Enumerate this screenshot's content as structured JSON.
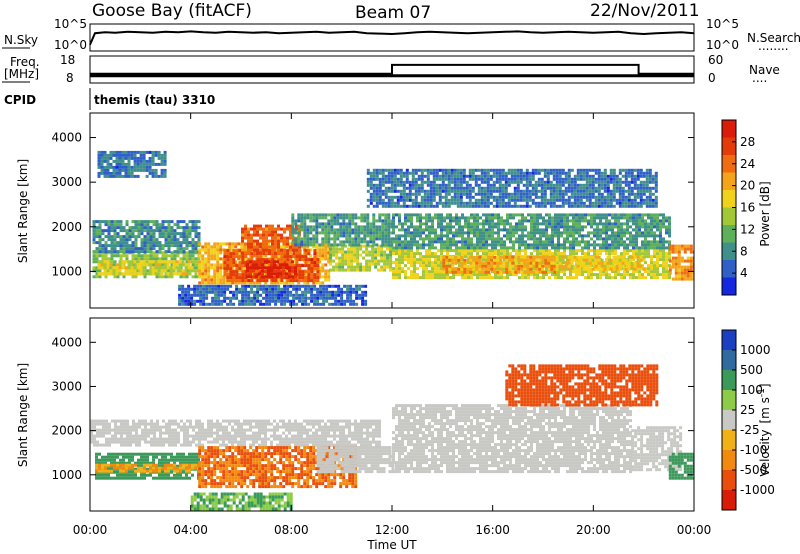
{
  "header": {
    "station": "Goose Bay (fitACF)",
    "beam": "Beam 07",
    "date": "22/Nov/2011"
  },
  "nsky_panel": {
    "left_label": "N.Sky",
    "right_label": "N.Search",
    "right_dots": "........",
    "left_ticks": [
      "10^5",
      "10^0"
    ],
    "right_ticks": [
      "10^5",
      "10^0"
    ]
  },
  "freq_panel": {
    "left_label_1": "Freq.",
    "left_label_2": "[MHz]",
    "right_label": "Nave",
    "right_dots": "....",
    "left_ticks": [
      "18",
      "8"
    ],
    "right_ticks": [
      "60",
      "0"
    ]
  },
  "cpid": {
    "label": "CPID",
    "text": "themis (tau) 3310"
  },
  "chart_data": [
    {
      "type": "line",
      "title": "N.Sky / N.Search",
      "x_unit": "hours UT",
      "x": [
        0.0,
        0.2,
        0.6,
        1.0,
        1.5,
        2.0,
        2.5,
        3.0,
        3.5,
        4.0,
        4.5,
        5.0,
        5.5,
        6.0,
        6.5,
        7.0,
        7.5,
        8.0,
        8.5,
        9.0,
        9.5,
        10.0,
        10.5,
        11.0,
        11.5,
        12.0,
        12.5,
        13.0,
        13.5,
        14.0,
        14.5,
        15.0,
        15.5,
        16.0,
        16.5,
        17.0,
        17.5,
        18.0,
        18.5,
        19.0,
        19.5,
        20.0,
        20.5,
        21.0,
        21.5,
        22.0,
        22.5,
        23.0,
        23.5,
        24.0
      ],
      "series": [
        {
          "name": "N.Sky",
          "log10_values": [
            1.0,
            3.6,
            3.8,
            3.7,
            3.9,
            3.8,
            3.7,
            3.9,
            3.8,
            4.0,
            3.8,
            3.7,
            3.9,
            3.8,
            3.7,
            3.8,
            3.6,
            3.7,
            3.8,
            3.9,
            3.7,
            3.8,
            3.9,
            3.6,
            3.5,
            3.4,
            3.6,
            3.8,
            3.9,
            3.8,
            3.7,
            3.6,
            3.7,
            3.8,
            3.9,
            4.0,
            3.8,
            3.7,
            3.8,
            3.9,
            3.8,
            3.7,
            3.8,
            3.9,
            3.6,
            3.4,
            3.6,
            3.7,
            3.8,
            3.6
          ]
        }
      ],
      "y_ticks": [
        "10^0",
        "10^5"
      ]
    },
    {
      "type": "line",
      "title": "Freq. / Nave",
      "x_unit": "hours UT",
      "x": [
        0.0,
        12.0,
        12.0,
        21.8,
        21.8,
        24.0
      ],
      "series": [
        {
          "name": "Freq.",
          "values": [
            10.4,
            10.4,
            10.4,
            10.4,
            10.4,
            10.4
          ]
        },
        {
          "name": "Nave",
          "values": [
            20,
            20,
            44,
            44,
            20,
            20
          ]
        }
      ],
      "ylim_left": [
        8,
        18
      ],
      "ylim_right": [
        0,
        60
      ]
    },
    {
      "type": "heatmap",
      "title": "Power",
      "x_ticks": [
        "00:00",
        "04:00",
        "08:00",
        "12:00",
        "16:00",
        "20:00",
        "00:00"
      ],
      "xlim_hours": [
        0,
        24
      ],
      "ylabel": "Slant Range [km]",
      "y_ticks": [
        1000,
        2000,
        3000,
        4000
      ],
      "ylim": [
        180,
        4550
      ],
      "colorbar": {
        "label": "Power [dB]",
        "ticks": [
          4,
          8,
          12,
          16,
          20,
          24,
          28
        ],
        "range": [
          0,
          32
        ],
        "colors": [
          "#1528e0",
          "#2f60c8",
          "#3f8f8a",
          "#5fb05a",
          "#a2c838",
          "#f0d21a",
          "#f4a418",
          "#ef6c10",
          "#e53a0a",
          "#da1c08"
        ]
      },
      "regions": [
        {
          "t0": 0.1,
          "t1": 4.3,
          "r0": 860,
          "r1": 1450,
          "v": 13
        },
        {
          "t0": 0.1,
          "t1": 4.3,
          "r0": 1450,
          "r1": 2150,
          "v": 8
        },
        {
          "t0": 0.3,
          "t1": 4.0,
          "r0": 980,
          "r1": 1250,
          "v": 17
        },
        {
          "t0": 4.3,
          "t1": 9.5,
          "r0": 760,
          "r1": 1650,
          "v": 20
        },
        {
          "t0": 5.3,
          "t1": 9.0,
          "r0": 820,
          "r1": 1500,
          "v": 26
        },
        {
          "t0": 6.0,
          "t1": 8.3,
          "r0": 1400,
          "r1": 2050,
          "v": 25
        },
        {
          "t0": 6.2,
          "t1": 8.2,
          "r0": 880,
          "r1": 1250,
          "v": 30
        },
        {
          "t0": 9.5,
          "t1": 12.0,
          "r0": 1050,
          "r1": 1600,
          "v": 15
        },
        {
          "t0": 8.0,
          "t1": 12.0,
          "r0": 1600,
          "r1": 2300,
          "v": 9
        },
        {
          "t0": 12.0,
          "t1": 23.0,
          "r0": 880,
          "r1": 1500,
          "v": 16
        },
        {
          "t0": 12.0,
          "t1": 23.0,
          "r0": 1500,
          "r1": 2300,
          "v": 9
        },
        {
          "t0": 14.0,
          "t1": 18.5,
          "r0": 1000,
          "r1": 1350,
          "v": 21
        },
        {
          "t0": 18.5,
          "t1": 22.0,
          "r0": 1050,
          "r1": 1350,
          "v": 18
        },
        {
          "t0": 23.0,
          "t1": 24.0,
          "r0": 800,
          "r1": 1600,
          "v": 22
        },
        {
          "t0": 0.3,
          "t1": 3.0,
          "r0": 3100,
          "r1": 3700,
          "v": 6
        },
        {
          "t0": 11.0,
          "t1": 22.5,
          "r0": 2450,
          "r1": 3300,
          "v": 6
        },
        {
          "t0": 3.5,
          "t1": 11.0,
          "r0": 250,
          "r1": 700,
          "v": 5
        }
      ]
    },
    {
      "type": "heatmap",
      "title": "Velocity",
      "x_ticks": [
        "00:00",
        "04:00",
        "08:00",
        "12:00",
        "16:00",
        "20:00",
        "00:00"
      ],
      "xlim_hours": [
        0,
        24
      ],
      "xlabel": "Time UT",
      "ylabel": "Slant Range [km]",
      "y_ticks": [
        1000,
        2000,
        3000,
        4000
      ],
      "ylim": [
        180,
        4550
      ],
      "colorbar": {
        "label": "Velocity [m s^-1]",
        "ticks": [
          "1000",
          "500",
          "100",
          "25",
          "-25",
          "-100",
          "-500",
          "-1000"
        ],
        "colors": [
          "#1a3fc0",
          "#2f6aa0",
          "#3b9a5a",
          "#8ccc48",
          "#c8c8c4",
          "#f0b018",
          "#f28a10",
          "#ea4e0c",
          "#d81c08"
        ]
      },
      "regions": [
        {
          "t0": 0.0,
          "t1": 11.5,
          "r0": 1700,
          "r1": 2250,
          "v": 0
        },
        {
          "t0": 0.2,
          "t1": 4.3,
          "r0": 950,
          "r1": 1500,
          "v": 250
        },
        {
          "t0": 0.2,
          "t1": 4.3,
          "r0": 1050,
          "r1": 1250,
          "v": -60
        },
        {
          "t0": 4.3,
          "t1": 10.5,
          "r0": 750,
          "r1": 1650,
          "v": -300
        },
        {
          "t0": 9.0,
          "t1": 12.0,
          "r0": 1050,
          "r1": 1650,
          "v": 0
        },
        {
          "t0": 12.0,
          "t1": 21.5,
          "r0": 1100,
          "r1": 2600,
          "v": 0
        },
        {
          "t0": 21.5,
          "t1": 23.5,
          "r0": 1100,
          "r1": 2100,
          "v": 0
        },
        {
          "t0": 23.0,
          "t1": 24.0,
          "r0": 900,
          "r1": 1500,
          "v": 250
        },
        {
          "t0": 4.0,
          "t1": 8.0,
          "r0": 250,
          "r1": 600,
          "v": 60
        },
        {
          "t0": 16.5,
          "t1": 22.5,
          "r0": 2600,
          "r1": 3500,
          "v": -400
        }
      ]
    }
  ],
  "axes": {
    "ylabel": "Slant Range [km]",
    "y_ticks": [
      "1000",
      "2000",
      "3000",
      "4000"
    ],
    "x_ticks": [
      "00:00",
      "04:00",
      "08:00",
      "12:00",
      "16:00",
      "20:00",
      "00:00"
    ],
    "xlabel": "Time UT"
  },
  "power_colorbar": {
    "label": "Power [dB]",
    "ticks": [
      "4",
      "8",
      "12",
      "16",
      "20",
      "24",
      "28"
    ]
  },
  "velocity_colorbar": {
    "label": "Velocity",
    "unit": "[m s",
    "unit_sup": "-1",
    "unit_end": "]",
    "ticks": [
      "1000",
      "500",
      "100",
      "25",
      "-25",
      "-100",
      "-500",
      "-1000"
    ]
  }
}
